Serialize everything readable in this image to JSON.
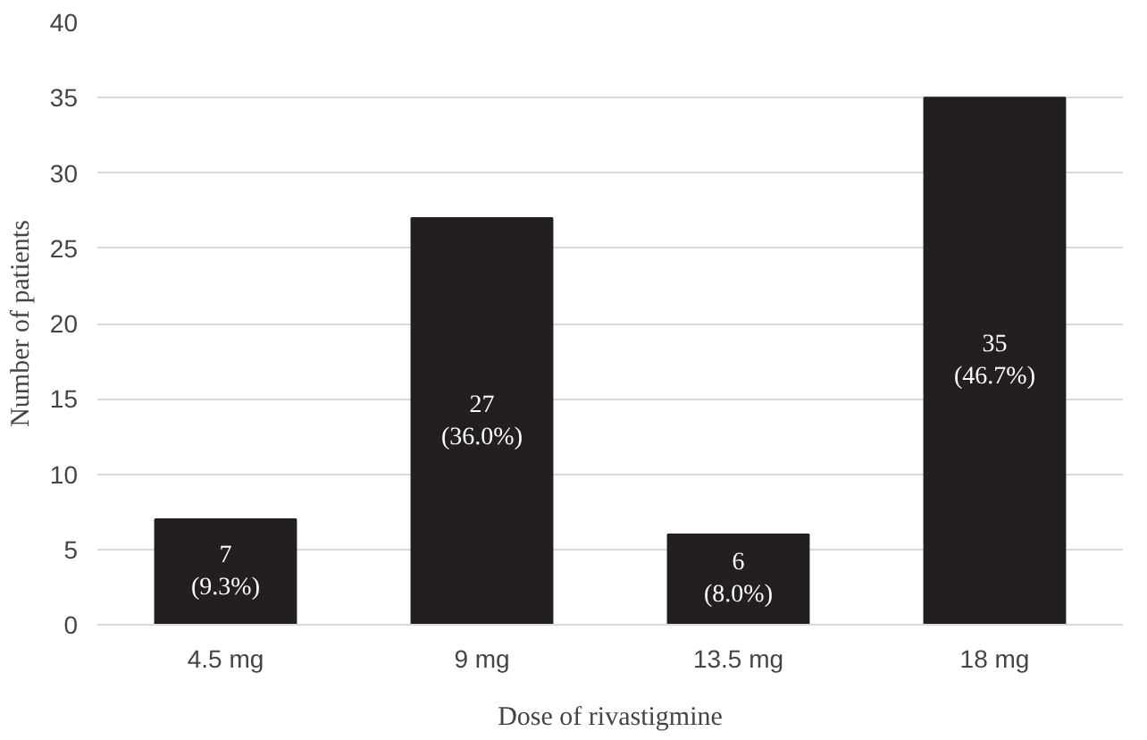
{
  "chart_data": {
    "type": "bar",
    "xlabel": "Dose of rivastigmine",
    "ylabel": "Number of patients",
    "categories": [
      "4.5 mg",
      "9 mg",
      "13.5 mg",
      "18 mg"
    ],
    "values": [
      7,
      27,
      6,
      35
    ],
    "color": "#231f20",
    "value_labels": [
      "7\n(9.3%)",
      "27\n(36.0%)",
      "6\n(8.0%)",
      "35\n(46.7%)"
    ],
    "ylim": [
      0,
      40
    ],
    "yticks": [
      0,
      5,
      10,
      15,
      20,
      25,
      30,
      35,
      40
    ],
    "grid": "y"
  }
}
